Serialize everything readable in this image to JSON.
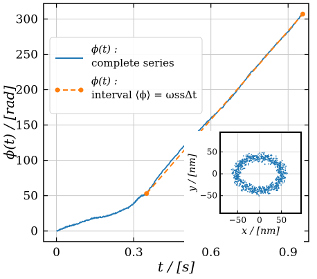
{
  "chart_data": [
    {
      "type": "line",
      "title": "",
      "xlabel": "t / [s]",
      "ylabel": "ϕ(t) / [rad]",
      "xlim": [
        -0.05,
        0.98
      ],
      "ylim": [
        -15,
        322
      ],
      "xticks": [
        0,
        0.3,
        0.6,
        0.9
      ],
      "xtick_labels": [
        "0",
        "0.3",
        "0.6",
        "0.9"
      ],
      "yticks": [
        0,
        50,
        100,
        150,
        200,
        250,
        300
      ],
      "ytick_labels": [
        "0",
        "50",
        "100",
        "150",
        "200",
        "250",
        "300"
      ],
      "grid": true,
      "legend_position": "upper-left",
      "series": [
        {
          "name": "ϕ(t) : complete series",
          "color": "#1f77b4",
          "style": "solid",
          "x": [
            0,
            0.02,
            0.04,
            0.06,
            0.08,
            0.1,
            0.12,
            0.14,
            0.16,
            0.18,
            0.2,
            0.22,
            0.24,
            0.26,
            0.28,
            0.3,
            0.31,
            0.32,
            0.33,
            0.34,
            0.35,
            0.4,
            0.45,
            0.5,
            0.55,
            0.6,
            0.65,
            0.7,
            0.75,
            0.8,
            0.85,
            0.9,
            0.95
          ],
          "y": [
            0,
            3,
            6,
            8,
            10,
            13,
            15,
            18,
            19,
            20,
            22,
            24,
            27,
            30,
            33,
            39,
            43,
            47,
            50,
            51,
            53,
            79,
            101,
            122,
            141,
            160,
            177,
            198,
            222,
            242,
            263,
            282,
            305
          ]
        },
        {
          "name": "ϕ(t) : interval ⟨ϕ⟩ = ωssΔt",
          "color": "#ff7f0e",
          "style": "dashed",
          "markers": "endpoints",
          "x": [
            0.35,
            0.957
          ],
          "y": [
            53,
            307
          ]
        }
      ],
      "legend": [
        {
          "line1": "ϕ(t) :",
          "line2": "complete series"
        },
        {
          "line1": "ϕ(t) :",
          "line2": "interval ⟨ϕ⟩ = ωssΔt"
        }
      ]
    },
    {
      "type": "scatter",
      "title": "",
      "xlabel": "x / [nm]",
      "ylabel": "y / [nm]",
      "xlim": [
        -90,
        95
      ],
      "ylim": [
        -90,
        95
      ],
      "xticks": [
        -50,
        0,
        50
      ],
      "xtick_labels": [
        "−50",
        "0",
        "50"
      ],
      "yticks": [
        -50,
        0,
        50
      ],
      "ytick_labels": [
        "−50",
        "0",
        "50"
      ],
      "color": "#1f77b4",
      "description_shape": "ring",
      "center": [
        0,
        0
      ],
      "radius_x": 52,
      "radius_y": 38,
      "thickness": 10,
      "point_count": 900
    }
  ]
}
